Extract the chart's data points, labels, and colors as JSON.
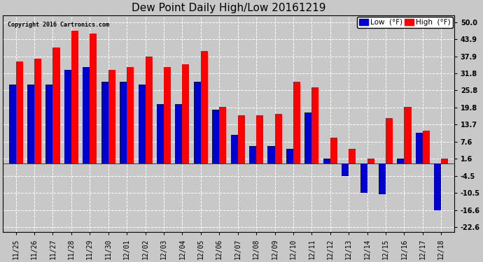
{
  "title": "Dew Point Daily High/Low 20161219",
  "copyright": "Copyright 2016 Cartronics.com",
  "dates": [
    "11/25",
    "11/26",
    "11/27",
    "11/28",
    "11/29",
    "11/30",
    "12/01",
    "12/02",
    "12/03",
    "12/04",
    "12/05",
    "12/06",
    "12/07",
    "12/08",
    "12/09",
    "12/10",
    "12/11",
    "12/12",
    "12/13",
    "12/14",
    "12/15",
    "12/16",
    "12/17",
    "12/18"
  ],
  "high_values": [
    36.0,
    37.0,
    41.0,
    46.9,
    46.0,
    33.0,
    34.0,
    37.9,
    34.0,
    35.0,
    39.9,
    20.0,
    17.0,
    17.0,
    17.5,
    28.9,
    27.0,
    9.0,
    5.0,
    1.6,
    16.0,
    19.9,
    11.5,
    1.6
  ],
  "low_values": [
    28.0,
    28.0,
    28.0,
    33.0,
    34.0,
    29.0,
    28.9,
    28.0,
    21.0,
    21.0,
    29.0,
    19.0,
    10.0,
    6.0,
    6.0,
    5.0,
    18.0,
    1.6,
    -4.5,
    -10.5,
    -10.9,
    1.6,
    10.9,
    -16.6
  ],
  "high_color": "#ff0000",
  "low_color": "#0000cc",
  "background_color": "#c8c8c8",
  "plot_bg_color": "#c8c8c8",
  "grid_color": "#ffffff",
  "yticks": [
    50.0,
    43.9,
    37.9,
    31.8,
    25.8,
    19.8,
    13.7,
    7.6,
    1.6,
    -4.5,
    -10.5,
    -16.6,
    -22.6
  ],
  "ylim": [
    -24.5,
    52.5
  ],
  "bar_width": 0.38,
  "title_fontsize": 11,
  "tick_fontsize": 7,
  "copyright_fontsize": 6,
  "legend_fontsize": 7.5
}
